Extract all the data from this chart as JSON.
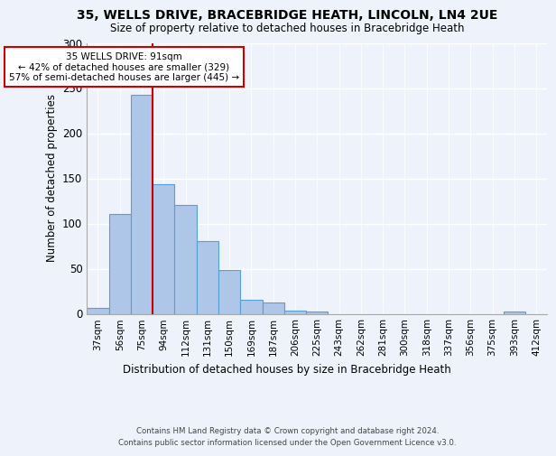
{
  "title1": "35, WELLS DRIVE, BRACEBRIDGE HEATH, LINCOLN, LN4 2UE",
  "title2": "Size of property relative to detached houses in Bracebridge Heath",
  "xlabel": "Distribution of detached houses by size in Bracebridge Heath",
  "ylabel": "Number of detached properties",
  "bin_labels": [
    "37sqm",
    "56sqm",
    "75sqm",
    "94sqm",
    "112sqm",
    "131sqm",
    "150sqm",
    "169sqm",
    "187sqm",
    "206sqm",
    "225sqm",
    "243sqm",
    "262sqm",
    "281sqm",
    "300sqm",
    "318sqm",
    "337sqm",
    "356sqm",
    "375sqm",
    "393sqm",
    "412sqm"
  ],
  "bar_heights": [
    7,
    111,
    243,
    144,
    121,
    81,
    49,
    16,
    13,
    4,
    3,
    0,
    0,
    0,
    0,
    0,
    0,
    0,
    0,
    3,
    0
  ],
  "bar_color": "#aec6e8",
  "bar_edge_color": "#5a9fd4",
  "vline_x": 2.5,
  "vline_color": "#cc0000",
  "annotation_text": "35 WELLS DRIVE: 91sqm\n← 42% of detached houses are smaller (329)\n57% of semi-detached houses are larger (445) →",
  "annotation_box_color": "#ffffff",
  "annotation_box_edge": "#cc0000",
  "ylim": [
    0,
    300
  ],
  "yticks": [
    0,
    50,
    100,
    150,
    200,
    250,
    300
  ],
  "footer_text": "Contains HM Land Registry data © Crown copyright and database right 2024.\nContains public sector information licensed under the Open Government Licence v3.0.",
  "bg_color": "#eef3fb",
  "plot_bg_color": "#eef3fb"
}
